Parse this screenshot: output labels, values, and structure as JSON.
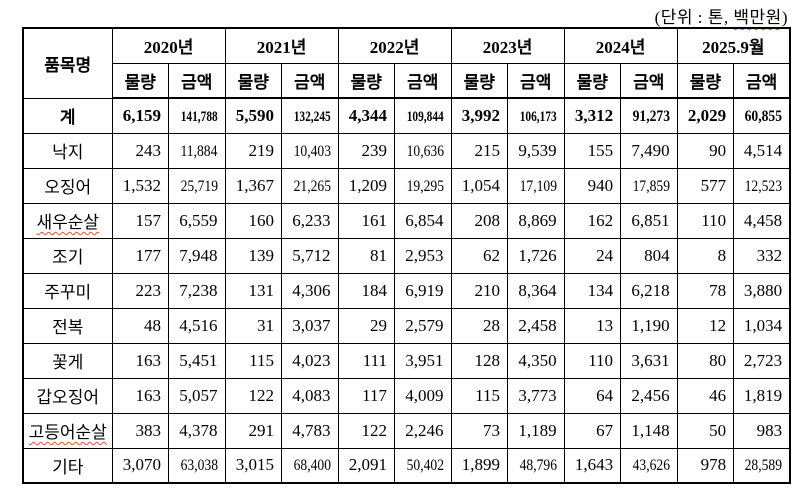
{
  "unit_note": {
    "prefix": "(단위 : 톤, ",
    "underlined_word": "백만원",
    "suffix": ")"
  },
  "table": {
    "item_header": "품목명",
    "years": [
      "2020년",
      "2021년",
      "2022년",
      "2023년",
      "2024년",
      "2025.9월"
    ],
    "sub_quantity": "물량",
    "sub_amount": "금액",
    "rows": [
      {
        "label": "계",
        "bold": true,
        "misspelled": false,
        "values": [
          "6,159",
          "141,788",
          "5,590",
          "132,245",
          "4,344",
          "109,844",
          "3,992",
          "106,173",
          "3,312",
          "91,273",
          "2,029",
          "60,855"
        ]
      },
      {
        "label": "낙지",
        "bold": false,
        "misspelled": false,
        "values": [
          "243",
          "11,884",
          "219",
          "10,403",
          "239",
          "10,636",
          "215",
          "9,539",
          "155",
          "7,490",
          "90",
          "4,514"
        ]
      },
      {
        "label": "오징어",
        "bold": false,
        "misspelled": false,
        "values": [
          "1,532",
          "25,719",
          "1,367",
          "21,265",
          "1,209",
          "19,295",
          "1,054",
          "17,109",
          "940",
          "17,859",
          "577",
          "12,523"
        ]
      },
      {
        "label": "새우순살",
        "bold": false,
        "misspelled": true,
        "values": [
          "157",
          "6,559",
          "160",
          "6,233",
          "161",
          "6,854",
          "208",
          "8,869",
          "162",
          "6,851",
          "110",
          "4,458"
        ]
      },
      {
        "label": "조기",
        "bold": false,
        "misspelled": false,
        "values": [
          "177",
          "7,948",
          "139",
          "5,712",
          "81",
          "2,953",
          "62",
          "1,726",
          "24",
          "804",
          "8",
          "332"
        ]
      },
      {
        "label": "주꾸미",
        "bold": false,
        "misspelled": false,
        "values": [
          "223",
          "7,238",
          "131",
          "4,306",
          "184",
          "6,919",
          "210",
          "8,364",
          "134",
          "6,218",
          "78",
          "3,880"
        ]
      },
      {
        "label": "전복",
        "bold": false,
        "misspelled": false,
        "values": [
          "48",
          "4,516",
          "31",
          "3,037",
          "29",
          "2,579",
          "28",
          "2,458",
          "13",
          "1,190",
          "12",
          "1,034"
        ]
      },
      {
        "label": "꽃게",
        "bold": false,
        "misspelled": false,
        "values": [
          "163",
          "5,451",
          "115",
          "4,023",
          "111",
          "3,951",
          "128",
          "4,350",
          "110",
          "3,631",
          "80",
          "2,723"
        ]
      },
      {
        "label": "갑오징어",
        "bold": false,
        "misspelled": false,
        "values": [
          "163",
          "5,057",
          "122",
          "4,083",
          "117",
          "4,009",
          "115",
          "3,773",
          "64",
          "2,456",
          "46",
          "1,819"
        ]
      },
      {
        "label": "고등어순살",
        "bold": false,
        "misspelled": true,
        "values": [
          "383",
          "4,378",
          "291",
          "4,783",
          "122",
          "2,246",
          "73",
          "1,189",
          "67",
          "1,148",
          "50",
          "983"
        ]
      },
      {
        "label": "기타",
        "bold": false,
        "misspelled": false,
        "values": [
          "3,070",
          "63,038",
          "3,015",
          "68,400",
          "2,091",
          "50,402",
          "1,899",
          "48,796",
          "1,643",
          "43,626",
          "978",
          "28,589"
        ]
      }
    ]
  },
  "colors": {
    "text": "#000000",
    "border": "#000000",
    "background": "#ffffff",
    "spellcheck_underline": "#e2542c"
  }
}
